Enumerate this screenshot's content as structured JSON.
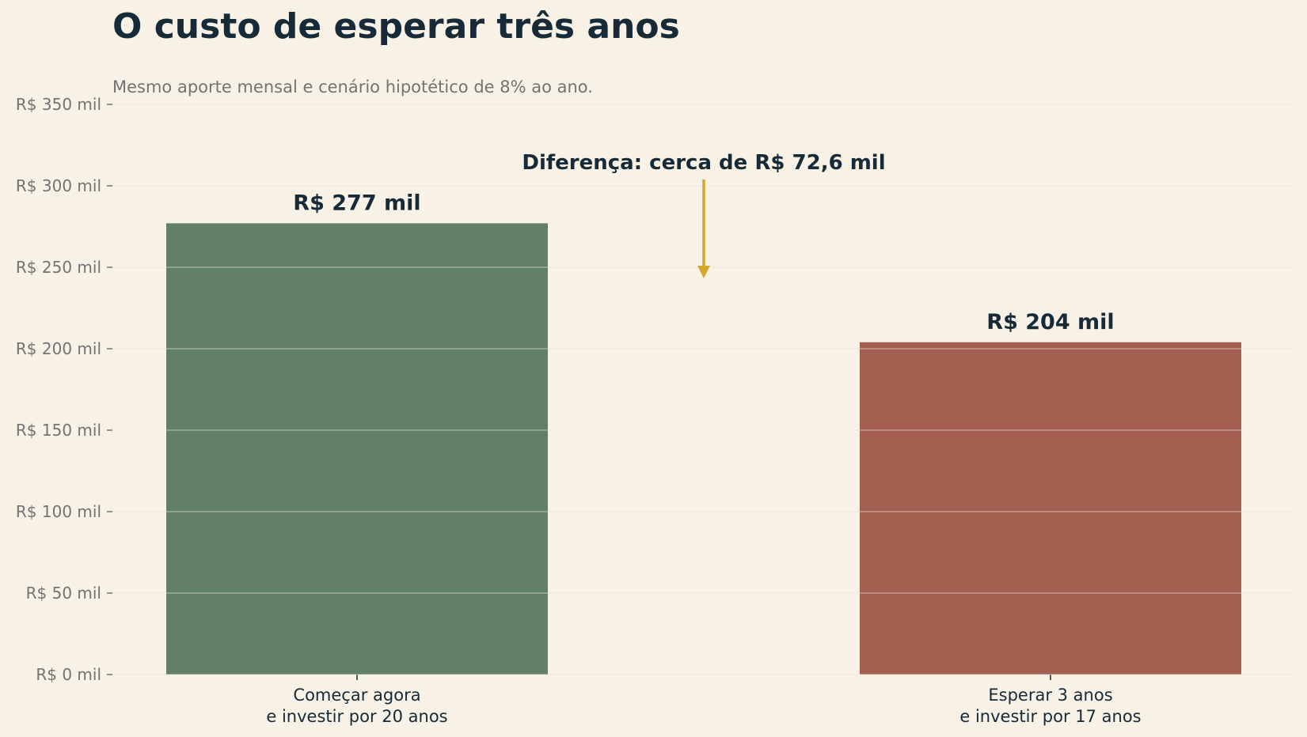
{
  "title": "O custo de esperar três anos",
  "subtitle": "Mesmo aporte mensal e cenário hipotético de 8% ao ano.",
  "chart_data": {
    "type": "bar",
    "title": "O custo de esperar três anos",
    "subtitle": "Mesmo aporte mensal e cenário hipotético de 8% ao ano.",
    "xlabel": "",
    "ylabel": "",
    "categories": [
      [
        "Começar agora",
        "e investir por 20 anos"
      ],
      [
        "Esperar 3 anos",
        "e investir por 17 anos"
      ]
    ],
    "values": [
      277,
      204
    ],
    "value_labels": [
      "R$ 277 mil",
      "R$ 204 mil"
    ],
    "bar_colors": [
      "#627f68",
      "#a55f50"
    ],
    "ylim": [
      0,
      350
    ],
    "yticks": [
      0,
      50,
      100,
      150,
      200,
      250,
      300,
      350
    ],
    "ytick_labels": [
      "R$ 0 mil",
      "R$ 50 mil",
      "R$ 100 mil",
      "R$ 150 mil",
      "R$ 200 mil",
      "R$ 250 mil",
      "R$ 300 mil",
      "R$ 350 mil"
    ],
    "grid": true,
    "legend": "none",
    "annotation": {
      "text": "Diferença: cerca de R$ 72,6 mil",
      "arrow_color": "#d4a72c"
    },
    "colors": {
      "background": "#f7f1e6",
      "text_dark": "#172a37",
      "text_muted": "#737373",
      "grid": "#ebe4d8"
    }
  }
}
